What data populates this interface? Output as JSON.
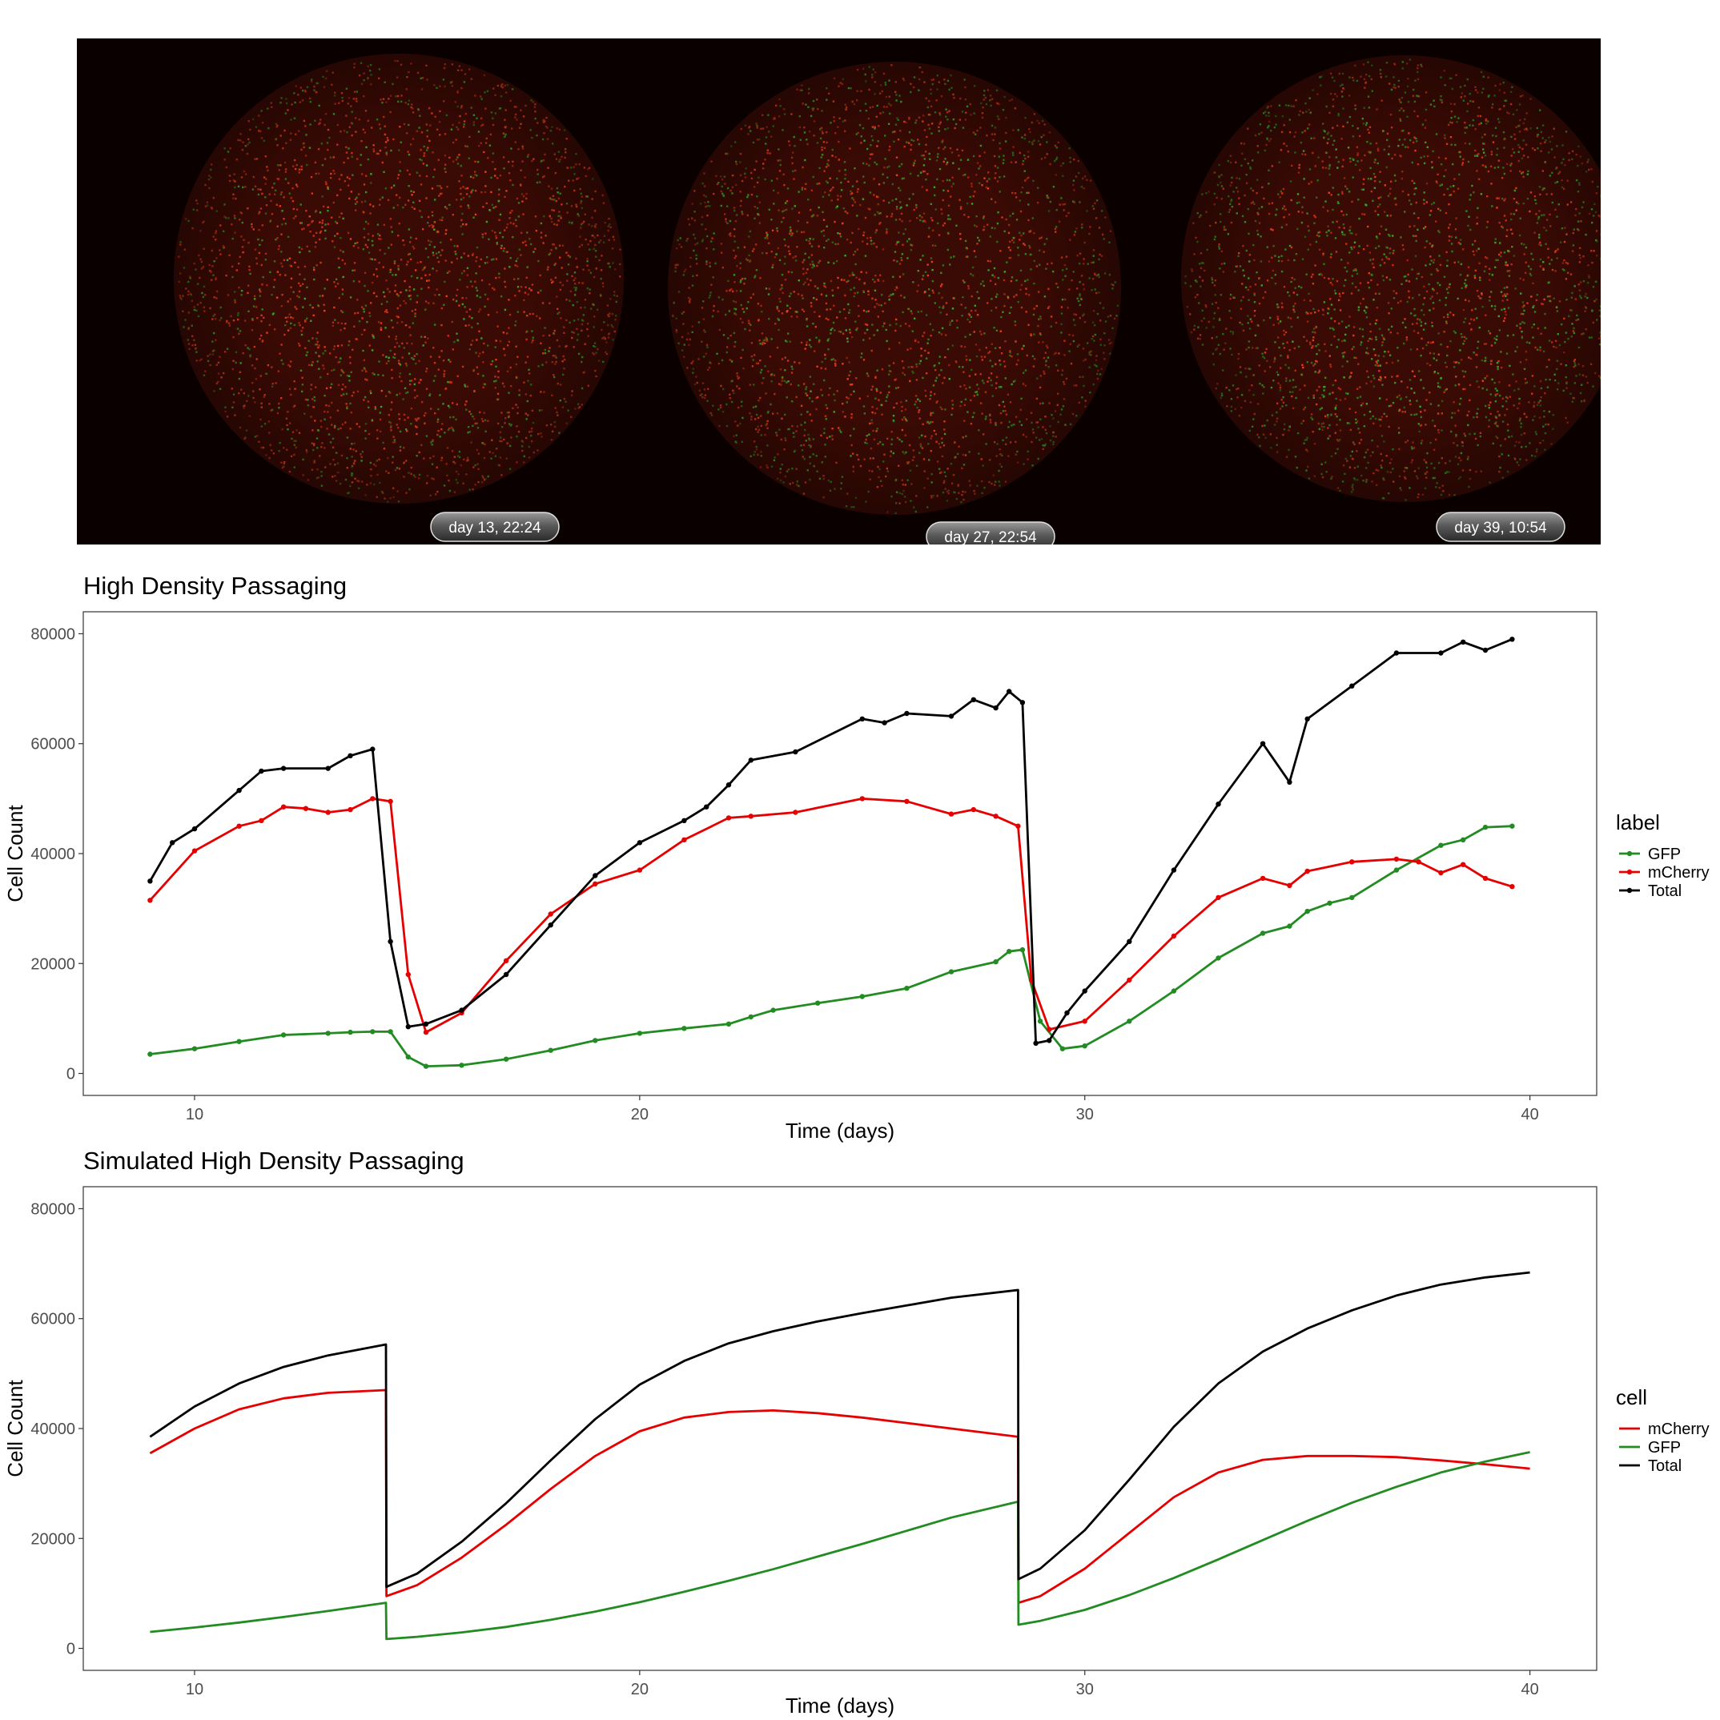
{
  "micrographs": {
    "background": "#0a0000",
    "wells": [
      {
        "timestamp": "day 13, 22:24",
        "red_share": 0.68
      },
      {
        "timestamp": "day 27, 22:54",
        "red_share": 0.55
      },
      {
        "timestamp": "day 39, 10:54",
        "red_share": 0.45
      }
    ]
  },
  "chart_data": [
    {
      "type": "line",
      "title": "High Density Passaging",
      "xlabel": "Time (days)",
      "ylabel": "Cell Count",
      "xlim": [
        7.5,
        41.5
      ],
      "ylim": [
        -4000,
        84000
      ],
      "xticks": [
        10,
        20,
        30,
        40
      ],
      "yticks": [
        0,
        20000,
        40000,
        60000,
        80000
      ],
      "grid": false,
      "legend_title": "label",
      "legend_position": "right",
      "markers": true,
      "series": [
        {
          "name": "GFP",
          "color": "#228B22",
          "x": [
            9,
            10,
            11,
            12,
            13,
            13.5,
            14,
            14.4,
            14.8,
            15.2,
            16,
            17,
            18,
            19,
            20,
            21,
            22,
            22.5,
            23,
            24,
            25,
            26,
            27,
            28,
            28.3,
            28.6,
            29,
            29.5,
            30,
            31,
            32,
            33,
            34,
            34.6,
            35,
            35.5,
            36,
            37,
            38,
            38.5,
            39,
            39.6
          ],
          "y": [
            3500,
            4500,
            5800,
            7000,
            7300,
            7500,
            7600,
            7600,
            3000,
            1300,
            1500,
            2600,
            4200,
            6000,
            7300,
            8200,
            9000,
            10300,
            11500,
            12800,
            14000,
            15500,
            18500,
            20300,
            22200,
            22500,
            9500,
            4500,
            5000,
            9500,
            15000,
            21000,
            25500,
            26800,
            29500,
            31000,
            32000,
            37000,
            41500,
            42500,
            44800,
            45000
          ]
        },
        {
          "name": "mCherry",
          "color": "#E60000",
          "x": [
            9,
            10,
            11,
            11.5,
            12,
            12.5,
            13,
            13.5,
            14,
            14.4,
            14.8,
            15.2,
            16,
            17,
            18,
            19,
            20,
            21,
            22,
            22.5,
            23.5,
            25,
            26,
            27,
            27.5,
            28,
            28.5,
            28.8,
            29.2,
            30,
            31,
            32,
            33,
            34,
            34.6,
            35,
            36,
            37,
            37.5,
            38,
            38.5,
            39,
            39.6
          ],
          "y": [
            31500,
            40500,
            45000,
            46000,
            48500,
            48200,
            47500,
            48000,
            50000,
            49500,
            18000,
            7500,
            11000,
            20500,
            29000,
            34500,
            37000,
            42500,
            46500,
            46800,
            47500,
            50000,
            49500,
            47200,
            48000,
            46800,
            45000,
            17000,
            8000,
            9500,
            17000,
            25000,
            32000,
            35500,
            34200,
            36800,
            38500,
            39000,
            38500,
            36500,
            38000,
            35500,
            34000
          ]
        },
        {
          "name": "Total",
          "color": "#000000",
          "x": [
            9,
            9.5,
            10,
            11,
            11.5,
            12,
            13,
            13.5,
            14,
            14.4,
            14.8,
            15.2,
            16,
            17,
            18,
            19,
            20,
            21,
            21.5,
            22,
            22.5,
            23.5,
            25,
            25.5,
            26,
            27,
            27.5,
            28,
            28.3,
            28.6,
            28.9,
            29.2,
            29.6,
            30,
            31,
            32,
            33,
            34,
            34.6,
            35,
            36,
            37,
            38,
            38.5,
            39,
            39.6
          ],
          "y": [
            35000,
            42000,
            44500,
            51500,
            55000,
            55500,
            55500,
            57800,
            59000,
            24000,
            8500,
            9000,
            11500,
            18000,
            27000,
            36000,
            42000,
            46000,
            48500,
            52500,
            57000,
            58500,
            64500,
            63800,
            65500,
            65000,
            68000,
            66500,
            69500,
            67500,
            5500,
            6000,
            11000,
            15000,
            24000,
            37000,
            49000,
            60000,
            53000,
            64500,
            70500,
            76500,
            76500,
            78500,
            77000,
            79000
          ]
        }
      ]
    },
    {
      "type": "line",
      "title": "Simulated High Density Passaging",
      "xlabel": "Time (days)",
      "ylabel": "Cell Count",
      "xlim": [
        7.5,
        41.5
      ],
      "ylim": [
        -4000,
        84000
      ],
      "xticks": [
        10,
        20,
        30,
        40
      ],
      "yticks": [
        0,
        20000,
        40000,
        60000,
        80000
      ],
      "grid": false,
      "legend_title": "cell",
      "legend_position": "right",
      "markers": false,
      "series": [
        {
          "name": "mCherry",
          "color": "#E60000",
          "x": [
            9,
            10,
            11,
            12,
            13,
            14.3,
            14.31,
            15,
            16,
            17,
            18,
            19,
            20,
            21,
            22,
            23,
            24,
            25,
            26,
            27,
            28.5,
            28.51,
            29,
            30,
            31,
            32,
            33,
            34,
            35,
            36,
            37,
            38,
            39,
            40
          ],
          "y": [
            35500,
            40000,
            43500,
            45500,
            46500,
            47000,
            9500,
            11500,
            16500,
            22500,
            29000,
            35000,
            39500,
            42000,
            43000,
            43300,
            42800,
            42000,
            41000,
            40000,
            38500,
            8300,
            9500,
            14500,
            21000,
            27500,
            32000,
            34300,
            35000,
            35000,
            34800,
            34200,
            33500,
            32700
          ]
        },
        {
          "name": "GFP",
          "color": "#228B22",
          "x": [
            9,
            10,
            11,
            12,
            13,
            14.3,
            14.31,
            15,
            16,
            17,
            18,
            19,
            20,
            21,
            22,
            23,
            24,
            25,
            26,
            27,
            28.5,
            28.51,
            29,
            30,
            31,
            32,
            33,
            34,
            35,
            36,
            37,
            38,
            39,
            40
          ],
          "y": [
            3000,
            3800,
            4700,
            5700,
            6800,
            8300,
            1700,
            2100,
            2900,
            3900,
            5200,
            6700,
            8400,
            10300,
            12300,
            14400,
            16700,
            19000,
            21400,
            23800,
            26700,
            4300,
            5000,
            7000,
            9700,
            12800,
            16200,
            19700,
            23200,
            26500,
            29400,
            32000,
            34000,
            35700
          ]
        },
        {
          "name": "Total",
          "color": "#000000",
          "x": [
            9,
            10,
            11,
            12,
            13,
            14.3,
            14.31,
            15,
            16,
            17,
            18,
            19,
            20,
            21,
            22,
            23,
            24,
            25,
            26,
            27,
            28.5,
            28.51,
            29,
            30,
            31,
            32,
            33,
            34,
            35,
            36,
            37,
            38,
            39,
            40
          ],
          "y": [
            38500,
            44000,
            48200,
            51200,
            53300,
            55300,
            11200,
            13600,
            19400,
            26400,
            34200,
            41700,
            48000,
            52300,
            55500,
            57700,
            59500,
            61000,
            62400,
            63800,
            65200,
            12600,
            14500,
            21500,
            30700,
            40300,
            48200,
            54000,
            58200,
            61500,
            64200,
            66200,
            67500,
            68400
          ]
        }
      ]
    }
  ]
}
